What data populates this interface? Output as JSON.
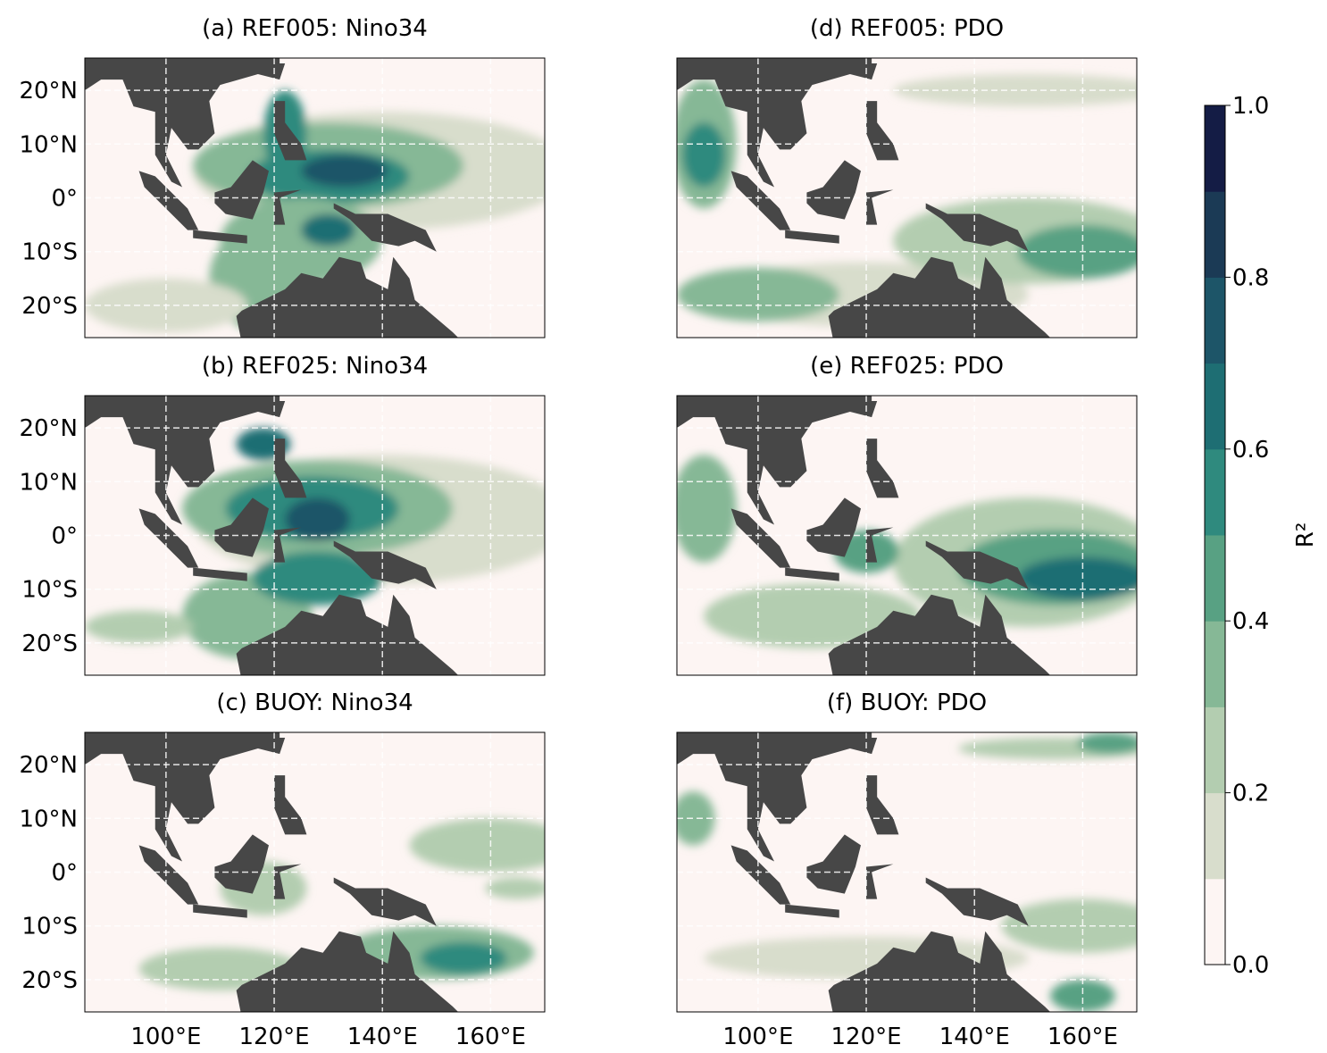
{
  "panels": [
    {
      "title": "(a) REF005: Nino34"
    },
    {
      "title": "(b) REF025: Nino34"
    },
    {
      "title": "(c) BUOY: Nino34"
    },
    {
      "title": "(d) REF005: PDO"
    },
    {
      "title": "(e) REF025: PDO"
    },
    {
      "title": "(f) BUOY: PDO"
    }
  ],
  "xlim": [
    85,
    170
  ],
  "ylim": [
    -26,
    26
  ],
  "xticks": [
    {
      "value": 100,
      "label": "100°E"
    },
    {
      "value": 120,
      "label": "120°E"
    },
    {
      "value": 140,
      "label": "140°E"
    },
    {
      "value": 160,
      "label": "160°E"
    }
  ],
  "yticks": [
    {
      "value": 20,
      "label": "20°N"
    },
    {
      "value": 10,
      "label": "10°N"
    },
    {
      "value": 0,
      "label": "0°"
    },
    {
      "value": -10,
      "label": "10°S"
    },
    {
      "value": -20,
      "label": "20°S"
    }
  ],
  "colorbar": {
    "label": "R²",
    "lim": [
      0,
      1
    ],
    "ticks": [
      {
        "value": 0,
        "label": "0.0"
      },
      {
        "value": 0.2,
        "label": "0.2"
      },
      {
        "value": 0.4,
        "label": "0.4"
      },
      {
        "value": 0.6,
        "label": "0.6"
      },
      {
        "value": 0.8,
        "label": "0.8"
      },
      {
        "value": 1,
        "label": "1.0"
      }
    ],
    "colors": [
      "#fdf5f3",
      "#d8ddcc",
      "#b3cdb0",
      "#86b896",
      "#58a183",
      "#2f8a7e",
      "#1e6e73",
      "#1d5568",
      "#1b3a55",
      "#141c45"
    ]
  },
  "land_color": "#474747"
}
